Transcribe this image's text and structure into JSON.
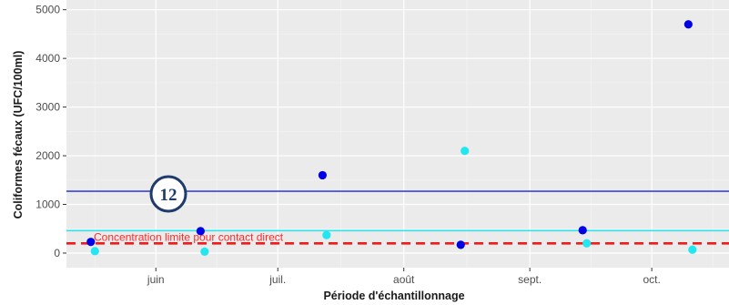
{
  "chart_data": {
    "type": "scatter",
    "title": "",
    "xlabel": "Période d'échantillonnage",
    "ylabel": "Coliformes fécaux (UFC/100ml)",
    "x_tick_labels": [
      "juin",
      "juil.",
      "août",
      "sept.",
      "oct."
    ],
    "x_ticks": [
      "2019-06-01",
      "2019-07-01",
      "2019-08-01",
      "2019-09-01",
      "2019-10-01"
    ],
    "xlim": [
      "2019-05-10",
      "2019-10-20"
    ],
    "ylim": [
      -300,
      5200
    ],
    "y_ticks": [
      0,
      1000,
      2000,
      3000,
      4000,
      5000
    ],
    "grid": true,
    "series": [
      {
        "color": "#0000e6",
        "points": [
          {
            "x": "2019-05-16",
            "y": 230
          },
          {
            "x": "2019-06-12",
            "y": 450
          },
          {
            "x": "2019-07-12",
            "y": 1600
          },
          {
            "x": "2019-08-15",
            "y": 170
          },
          {
            "x": "2019-09-14",
            "y": 470
          },
          {
            "x": "2019-10-10",
            "y": 4700
          }
        ]
      },
      {
        "color": "#22e6f0",
        "points": [
          {
            "x": "2019-05-17",
            "y": 40
          },
          {
            "x": "2019-06-13",
            "y": 30
          },
          {
            "x": "2019-07-13",
            "y": 370
          },
          {
            "x": "2019-08-16",
            "y": 2100
          },
          {
            "x": "2019-09-15",
            "y": 200
          },
          {
            "x": "2019-10-11",
            "y": 70
          }
        ]
      }
    ],
    "reference_lines": [
      {
        "y": 1270,
        "color": "#3b44e0",
        "style": "solid"
      },
      {
        "y": 460,
        "color": "#22e6f0",
        "style": "solid"
      },
      {
        "y": 200,
        "color": "#ee1c1c",
        "style": "dashed",
        "label": "Concentration limite pour contact direct"
      }
    ]
  },
  "badge": {
    "label": "12"
  }
}
